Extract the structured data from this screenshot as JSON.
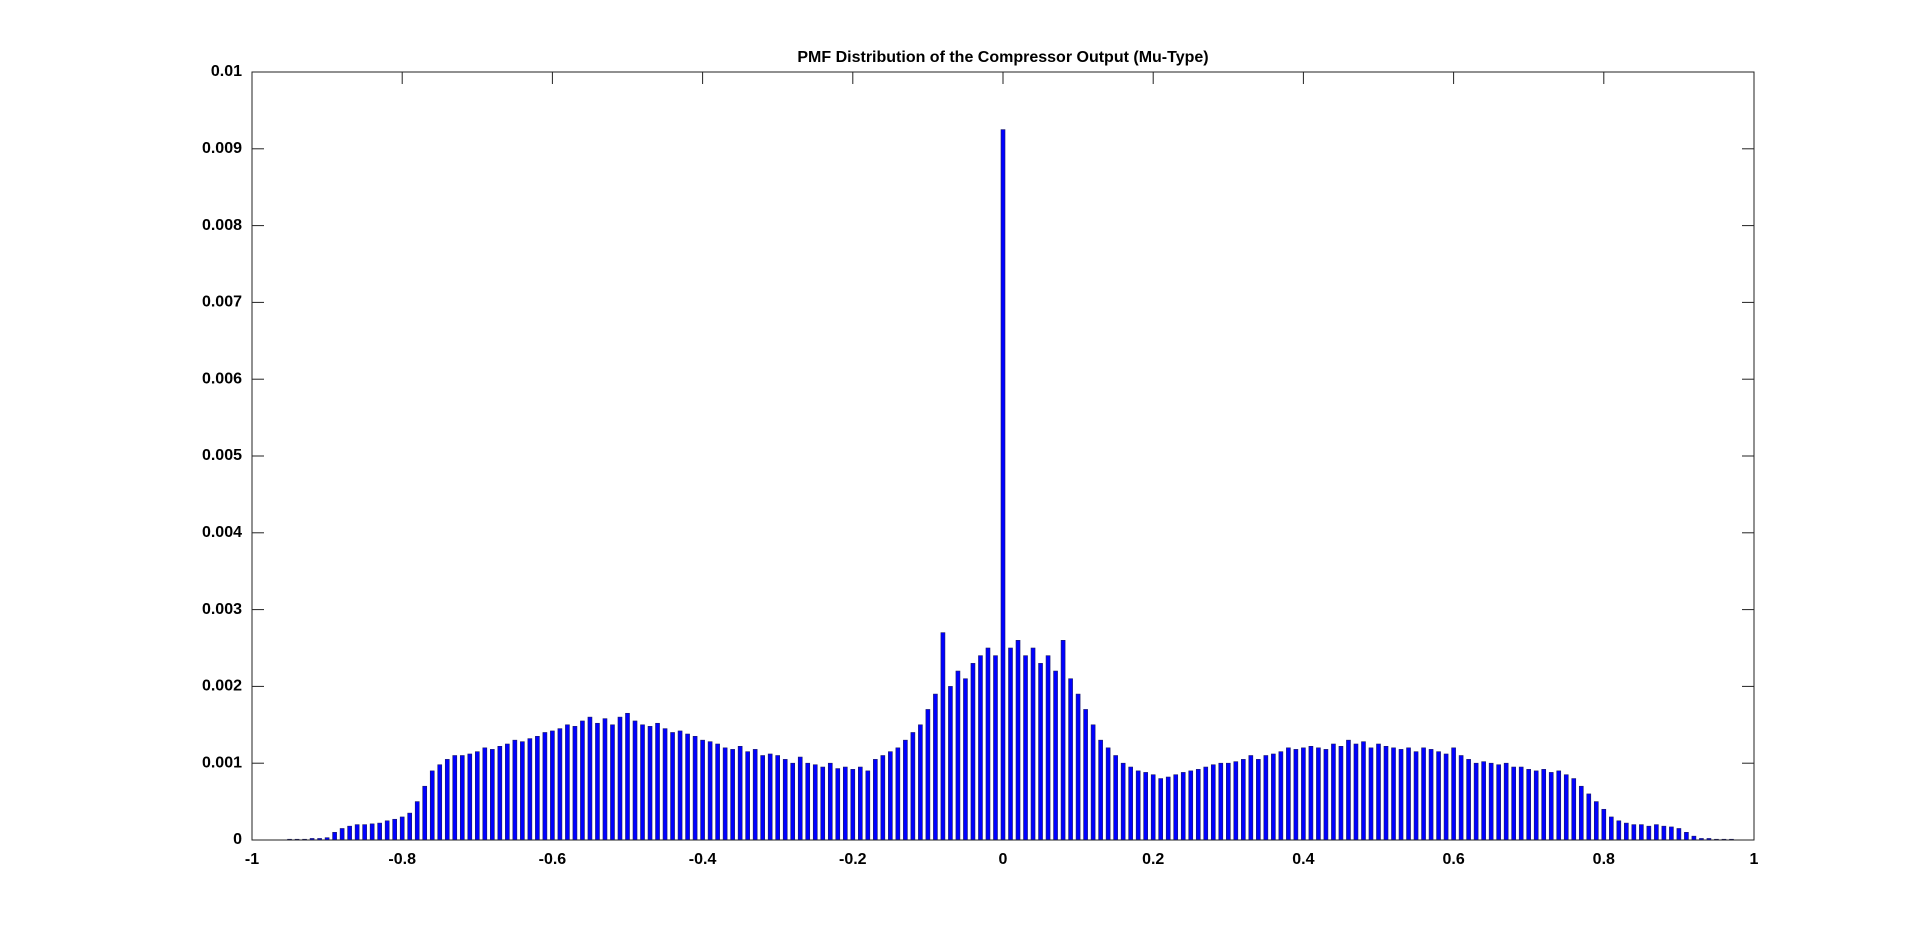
{
  "chart_data": {
    "type": "bar",
    "title": "PMF Distribution of the Compressor Output (Mu-Type)",
    "x": [
      -0.95,
      -0.94,
      -0.93,
      -0.92,
      -0.91,
      -0.9,
      -0.89,
      -0.88,
      -0.87,
      -0.86,
      -0.85,
      -0.84,
      -0.83,
      -0.82,
      -0.81,
      -0.8,
      -0.79,
      -0.78,
      -0.77,
      -0.76,
      -0.75,
      -0.74,
      -0.73,
      -0.72,
      -0.71,
      -0.7,
      -0.69,
      -0.68,
      -0.67,
      -0.66,
      -0.65,
      -0.64,
      -0.63,
      -0.62,
      -0.61,
      -0.6,
      -0.59,
      -0.58,
      -0.57,
      -0.56,
      -0.55,
      -0.54,
      -0.53,
      -0.52,
      -0.51,
      -0.5,
      -0.49,
      -0.48,
      -0.47,
      -0.46,
      -0.45,
      -0.44,
      -0.43,
      -0.42,
      -0.41,
      -0.4,
      -0.39,
      -0.38,
      -0.37,
      -0.36,
      -0.35,
      -0.34,
      -0.33,
      -0.32,
      -0.31,
      -0.3,
      -0.29,
      -0.28,
      -0.27,
      -0.26,
      -0.25,
      -0.24,
      -0.23,
      -0.22,
      -0.21,
      -0.2,
      -0.19,
      -0.18,
      -0.17,
      -0.16,
      -0.15,
      -0.14,
      -0.13,
      -0.12,
      -0.11,
      -0.1,
      -0.09,
      -0.08,
      -0.07,
      -0.06,
      -0.05,
      -0.04,
      -0.03,
      -0.02,
      -0.01,
      0,
      0.01,
      0.02,
      0.03,
      0.04,
      0.05,
      0.06,
      0.07,
      0.08,
      0.09,
      0.1,
      0.11,
      0.12,
      0.13,
      0.14,
      0.15,
      0.16,
      0.17,
      0.18,
      0.19,
      0.2,
      0.21,
      0.22,
      0.23,
      0.24,
      0.25,
      0.26,
      0.27,
      0.28,
      0.29,
      0.3,
      0.31,
      0.32,
      0.33,
      0.34,
      0.35,
      0.36,
      0.37,
      0.38,
      0.39,
      0.4,
      0.41,
      0.42,
      0.43,
      0.44,
      0.45,
      0.46,
      0.47,
      0.48,
      0.49,
      0.5,
      0.51,
      0.52,
      0.53,
      0.54,
      0.55,
      0.56,
      0.57,
      0.58,
      0.59,
      0.6,
      0.61,
      0.62,
      0.63,
      0.64,
      0.65,
      0.66,
      0.67,
      0.68,
      0.69,
      0.7,
      0.71,
      0.72,
      0.73,
      0.74,
      0.75,
      0.76,
      0.77,
      0.78,
      0.79,
      0.8,
      0.81,
      0.82,
      0.83,
      0.84,
      0.85,
      0.86,
      0.87,
      0.88,
      0.89,
      0.9,
      0.91,
      0.92,
      0.93,
      0.94,
      0.95,
      0.96,
      0.97
    ],
    "values": [
      1e-05,
      1e-05,
      1e-05,
      2e-05,
      2e-05,
      3e-05,
      0.0001,
      0.00015,
      0.00018,
      0.0002,
      0.0002,
      0.00021,
      0.00022,
      0.00025,
      0.00027,
      0.0003,
      0.00035,
      0.0005,
      0.0007,
      0.0009,
      0.00098,
      0.00105,
      0.0011,
      0.0011,
      0.00112,
      0.00115,
      0.0012,
      0.00118,
      0.00122,
      0.00125,
      0.0013,
      0.00128,
      0.00132,
      0.00135,
      0.0014,
      0.00142,
      0.00145,
      0.0015,
      0.00148,
      0.00155,
      0.0016,
      0.00152,
      0.00158,
      0.0015,
      0.0016,
      0.00165,
      0.00155,
      0.0015,
      0.00148,
      0.00152,
      0.00145,
      0.0014,
      0.00142,
      0.00138,
      0.00135,
      0.0013,
      0.00128,
      0.00125,
      0.0012,
      0.00118,
      0.00122,
      0.00115,
      0.00118,
      0.0011,
      0.00112,
      0.0011,
      0.00105,
      0.001,
      0.00108,
      0.001,
      0.00098,
      0.00095,
      0.001,
      0.00093,
      0.00095,
      0.00092,
      0.00095,
      0.0009,
      0.00105,
      0.0011,
      0.00115,
      0.0012,
      0.0013,
      0.0014,
      0.0015,
      0.0017,
      0.0019,
      0.0027,
      0.002,
      0.0022,
      0.0021,
      0.0023,
      0.0024,
      0.0025,
      0.0024,
      0.00925,
      0.0025,
      0.0026,
      0.0024,
      0.0025,
      0.0023,
      0.0024,
      0.0022,
      0.0026,
      0.0021,
      0.0019,
      0.0017,
      0.0015,
      0.0013,
      0.0012,
      0.0011,
      0.001,
      0.00095,
      0.0009,
      0.00088,
      0.00085,
      0.0008,
      0.00082,
      0.00085,
      0.00088,
      0.0009,
      0.00092,
      0.00095,
      0.00098,
      0.001,
      0.001,
      0.00102,
      0.00105,
      0.0011,
      0.00105,
      0.0011,
      0.00112,
      0.00115,
      0.0012,
      0.00118,
      0.0012,
      0.00122,
      0.0012,
      0.00118,
      0.00125,
      0.00122,
      0.0013,
      0.00125,
      0.00128,
      0.0012,
      0.00125,
      0.00122,
      0.0012,
      0.00118,
      0.0012,
      0.00115,
      0.0012,
      0.00118,
      0.00115,
      0.00112,
      0.0012,
      0.0011,
      0.00105,
      0.001,
      0.00102,
      0.001,
      0.00098,
      0.001,
      0.00095,
      0.00095,
      0.00092,
      0.0009,
      0.00092,
      0.00088,
      0.0009,
      0.00085,
      0.0008,
      0.0007,
      0.0006,
      0.0005,
      0.0004,
      0.0003,
      0.00025,
      0.00022,
      0.0002,
      0.0002,
      0.00018,
      0.0002,
      0.00018,
      0.00017,
      0.00015,
      0.0001,
      5e-05,
      2e-05,
      2e-05,
      1e-05,
      1e-05,
      1e-05
    ],
    "color": "#0000ff",
    "xlim": [
      -1,
      1
    ],
    "xticks": [
      -1,
      -0.8,
      -0.6,
      -0.4,
      -0.2,
      0,
      0.2,
      0.4,
      0.6,
      0.8,
      1
    ],
    "ylim": [
      0,
      0.01
    ],
    "yticks": [
      0,
      0.001,
      0.002,
      0.003,
      0.004,
      0.005,
      0.006,
      0.007,
      0.008,
      0.009,
      0.01
    ]
  }
}
